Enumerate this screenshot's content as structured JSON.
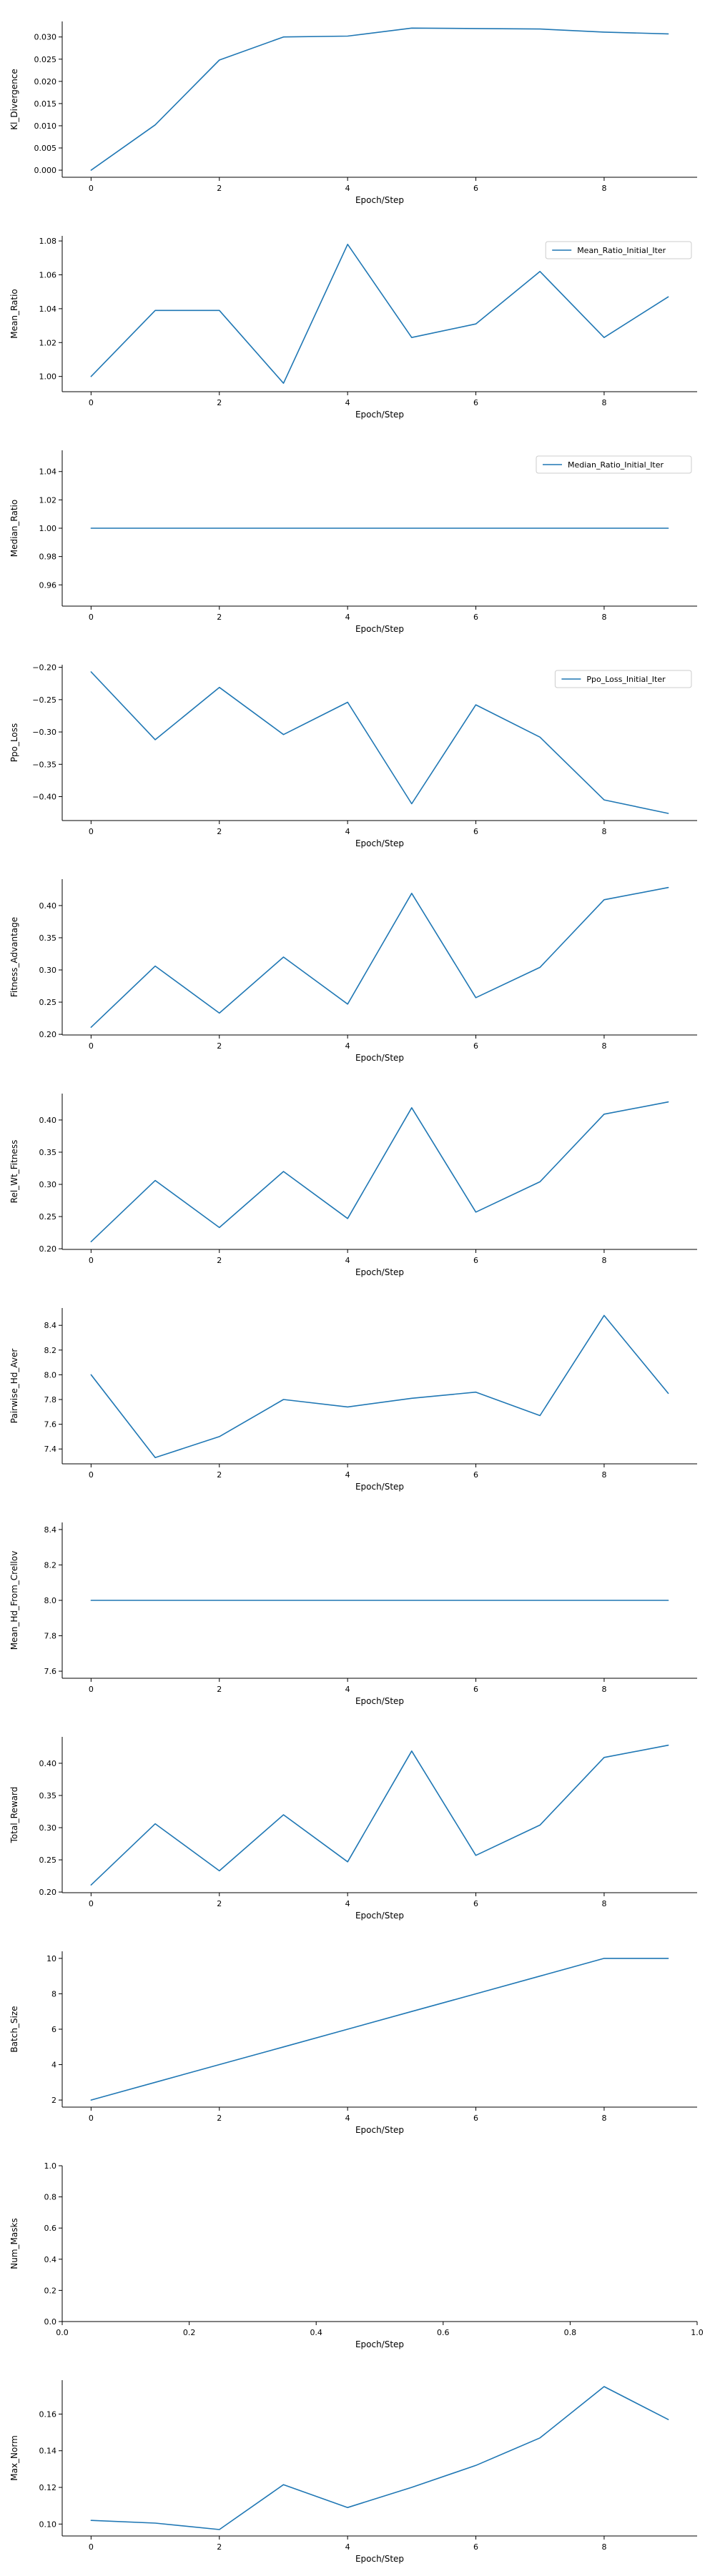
{
  "colors": {
    "series": "#1f77b4",
    "axis": "#000000",
    "legend_border": "#cccccc"
  },
  "chart_data": [
    {
      "type": "line",
      "xlabel": "Epoch/Step",
      "ylabel": "Kl_Divergence",
      "legend": null,
      "xlim": [
        -0.45,
        9.45
      ],
      "ylim": [
        -0.0016,
        0.0335
      ],
      "xticks": [
        0,
        2,
        4,
        6,
        8
      ],
      "yticks": [
        0,
        0.005,
        0.01,
        0.015,
        0.02,
        0.025,
        0.03
      ],
      "ytick_labels": [
        "0.000",
        "0.005",
        "0.010",
        "0.015",
        "0.020",
        "0.025",
        "0.030"
      ],
      "x": [
        0,
        1,
        2,
        3,
        4,
        5,
        6,
        7,
        8,
        9
      ],
      "y": [
        0.0,
        0.0102,
        0.0248,
        0.03,
        0.0302,
        0.032,
        0.0319,
        0.0318,
        0.0311,
        0.0307
      ]
    },
    {
      "type": "line",
      "xlabel": "Epoch/Step",
      "ylabel": "Mean_Ratio",
      "legend": "Mean_Ratio_Initial_Iter",
      "xlim": [
        -0.45,
        9.45
      ],
      "ylim": [
        0.991,
        1.083
      ],
      "xticks": [
        0,
        2,
        4,
        6,
        8
      ],
      "yticks": [
        1.0,
        1.02,
        1.04,
        1.06,
        1.08
      ],
      "ytick_labels": [
        "1.00",
        "1.02",
        "1.04",
        "1.06",
        "1.08"
      ],
      "x": [
        0,
        1,
        2,
        3,
        4,
        5,
        6,
        7,
        8,
        9
      ],
      "y": [
        1.0,
        1.039,
        1.039,
        0.996,
        1.078,
        1.023,
        1.031,
        1.062,
        1.023,
        1.047
      ]
    },
    {
      "type": "line",
      "xlabel": "Epoch/Step",
      "ylabel": "Median_Ratio",
      "legend": "Median_Ratio_Initial_Iter",
      "xlim": [
        -0.45,
        9.45
      ],
      "ylim": [
        0.945,
        1.055
      ],
      "xticks": [
        0,
        2,
        4,
        6,
        8
      ],
      "yticks": [
        0.96,
        0.98,
        1.0,
        1.02,
        1.04
      ],
      "ytick_labels": [
        "0.96",
        "0.98",
        "1.00",
        "1.02",
        "1.04"
      ],
      "x": [
        0,
        1,
        2,
        3,
        4,
        5,
        6,
        7,
        8,
        9
      ],
      "y": [
        1.0,
        1.0,
        1.0,
        1.0,
        1.0,
        1.0,
        1.0,
        1.0,
        1.0,
        1.0
      ]
    },
    {
      "type": "line",
      "xlabel": "Epoch/Step",
      "ylabel": "Ppo_Loss",
      "legend": "Ppo_Loss_Initial_Iter",
      "xlim": [
        -0.45,
        9.45
      ],
      "ylim": [
        -0.437,
        -0.196
      ],
      "xticks": [
        0,
        2,
        4,
        6,
        8
      ],
      "yticks": [
        -0.4,
        -0.35,
        -0.3,
        -0.25,
        -0.2
      ],
      "ytick_labels": [
        "−0.40",
        "−0.35",
        "−0.30",
        "−0.25",
        "−0.20"
      ],
      "x": [
        0,
        1,
        2,
        3,
        4,
        5,
        6,
        7,
        8,
        9
      ],
      "y": [
        -0.207,
        -0.312,
        -0.231,
        -0.304,
        -0.254,
        -0.411,
        -0.258,
        -0.308,
        -0.405,
        -0.426
      ]
    },
    {
      "type": "line",
      "xlabel": "Epoch/Step",
      "ylabel": "Fitness_Advantage",
      "legend": null,
      "xlim": [
        -0.45,
        9.45
      ],
      "ylim": [
        0.199,
        0.441
      ],
      "xticks": [
        0,
        2,
        4,
        6,
        8
      ],
      "yticks": [
        0.2,
        0.25,
        0.3,
        0.35,
        0.4
      ],
      "ytick_labels": [
        "0.20",
        "0.25",
        "0.30",
        "0.35",
        "0.40"
      ],
      "x": [
        0,
        1,
        2,
        3,
        4,
        5,
        6,
        7,
        8,
        9
      ],
      "y": [
        0.211,
        0.306,
        0.233,
        0.32,
        0.247,
        0.419,
        0.257,
        0.304,
        0.409,
        0.428
      ]
    },
    {
      "type": "line",
      "xlabel": "Epoch/Step",
      "ylabel": "Rel_Wt_Fitness",
      "legend": null,
      "xlim": [
        -0.45,
        9.45
      ],
      "ylim": [
        0.199,
        0.441
      ],
      "xticks": [
        0,
        2,
        4,
        6,
        8
      ],
      "yticks": [
        0.2,
        0.25,
        0.3,
        0.35,
        0.4
      ],
      "ytick_labels": [
        "0.20",
        "0.25",
        "0.30",
        "0.35",
        "0.40"
      ],
      "x": [
        0,
        1,
        2,
        3,
        4,
        5,
        6,
        7,
        8,
        9
      ],
      "y": [
        0.211,
        0.306,
        0.233,
        0.32,
        0.247,
        0.419,
        0.257,
        0.304,
        0.409,
        0.428
      ]
    },
    {
      "type": "line",
      "xlabel": "Epoch/Step",
      "ylabel": "Pairwise_Hd_Aver",
      "legend": null,
      "xlim": [
        -0.45,
        9.45
      ],
      "ylim": [
        7.28,
        8.54
      ],
      "xticks": [
        0,
        2,
        4,
        6,
        8
      ],
      "yticks": [
        7.4,
        7.6,
        7.8,
        8.0,
        8.2,
        8.4
      ],
      "ytick_labels": [
        "7.4",
        "7.6",
        "7.8",
        "8.0",
        "8.2",
        "8.4"
      ],
      "x": [
        0,
        1,
        2,
        3,
        4,
        5,
        6,
        7,
        8,
        9
      ],
      "y": [
        8.0,
        7.33,
        7.5,
        7.8,
        7.74,
        7.81,
        7.86,
        7.67,
        8.48,
        7.85
      ]
    },
    {
      "type": "line",
      "xlabel": "Epoch/Step",
      "ylabel": "Mean_Hd_From_Crellov",
      "legend": null,
      "xlim": [
        -0.45,
        9.45
      ],
      "ylim": [
        7.56,
        8.44
      ],
      "xticks": [
        0,
        2,
        4,
        6,
        8
      ],
      "yticks": [
        7.6,
        7.8,
        8.0,
        8.2,
        8.4
      ],
      "ytick_labels": [
        "7.6",
        "7.8",
        "8.0",
        "8.2",
        "8.4"
      ],
      "x": [
        0,
        1,
        2,
        3,
        4,
        5,
        6,
        7,
        8,
        9
      ],
      "y": [
        8.0,
        8.0,
        8.0,
        8.0,
        8.0,
        8.0,
        8.0,
        8.0,
        8.0,
        8.0
      ]
    },
    {
      "type": "line",
      "xlabel": "Epoch/Step",
      "ylabel": "Total_Reward",
      "legend": null,
      "xlim": [
        -0.45,
        9.45
      ],
      "ylim": [
        0.199,
        0.441
      ],
      "xticks": [
        0,
        2,
        4,
        6,
        8
      ],
      "yticks": [
        0.2,
        0.25,
        0.3,
        0.35,
        0.4
      ],
      "ytick_labels": [
        "0.20",
        "0.25",
        "0.30",
        "0.35",
        "0.40"
      ],
      "x": [
        0,
        1,
        2,
        3,
        4,
        5,
        6,
        7,
        8,
        9
      ],
      "y": [
        0.211,
        0.306,
        0.233,
        0.32,
        0.247,
        0.419,
        0.257,
        0.304,
        0.409,
        0.428
      ]
    },
    {
      "type": "line",
      "xlabel": "Epoch/Step",
      "ylabel": "Batch_Size",
      "legend": null,
      "xlim": [
        -0.45,
        9.45
      ],
      "ylim": [
        1.6,
        10.4
      ],
      "xticks": [
        0,
        2,
        4,
        6,
        8
      ],
      "yticks": [
        2,
        4,
        6,
        8,
        10
      ],
      "ytick_labels": [
        "2",
        "4",
        "6",
        "8",
        "10"
      ],
      "x": [
        0,
        1,
        2,
        3,
        4,
        5,
        6,
        7,
        8,
        9
      ],
      "y": [
        2,
        3,
        4,
        5,
        6,
        7,
        8,
        9,
        10,
        10
      ]
    },
    {
      "type": "line",
      "xlabel": "Epoch/Step",
      "ylabel": "Num_Masks",
      "legend": null,
      "xlim": [
        0,
        1
      ],
      "ylim": [
        0,
        1
      ],
      "xticks": [
        0,
        0.2,
        0.4,
        0.6,
        0.8,
        1.0
      ],
      "xtick_labels": [
        "0.0",
        "0.2",
        "0.4",
        "0.6",
        "0.8",
        "1.0"
      ],
      "yticks": [
        0,
        0.2,
        0.4,
        0.6,
        0.8,
        1.0
      ],
      "ytick_labels": [
        "0.0",
        "0.2",
        "0.4",
        "0.6",
        "0.8",
        "1.0"
      ],
      "x": [],
      "y": []
    },
    {
      "type": "line",
      "xlabel": "Epoch/Step",
      "ylabel": "Max_Norm",
      "legend": null,
      "xlim": [
        -0.45,
        9.45
      ],
      "ylim": [
        0.0935,
        0.1785
      ],
      "xticks": [
        0,
        2,
        4,
        6,
        8
      ],
      "yticks": [
        0.1,
        0.12,
        0.14,
        0.16
      ],
      "ytick_labels": [
        "0.10",
        "0.12",
        "0.14",
        "0.16"
      ],
      "x": [
        0,
        1,
        2,
        3,
        4,
        5,
        6,
        7,
        8,
        9
      ],
      "y": [
        0.102,
        0.1005,
        0.097,
        0.1215,
        0.109,
        0.12,
        0.132,
        0.147,
        0.175,
        0.157
      ]
    }
  ]
}
